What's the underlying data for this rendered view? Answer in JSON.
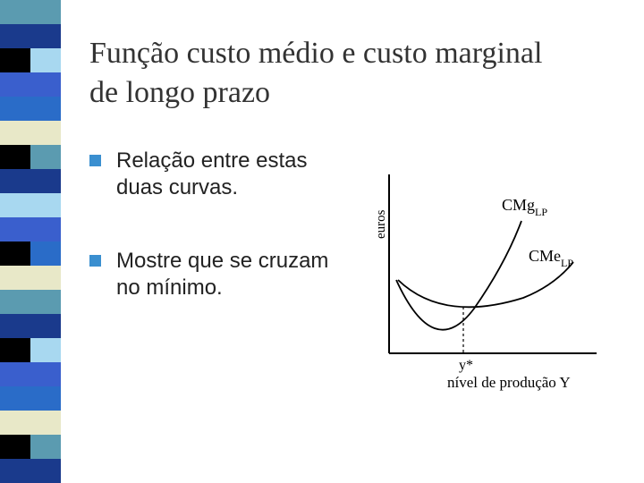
{
  "slide": {
    "title_line1": "Função custo médio e custo marginal",
    "title_line2": "de longo prazo",
    "bullets": [
      {
        "text": "Relação entre estas duas curvas."
      },
      {
        "text": "Mostre que se cruzam no mínimo."
      }
    ]
  },
  "diagram": {
    "y_axis_label": "euros",
    "x_axis_label": "nível de produção Y",
    "equilibrium_label": "y*",
    "curve_marginal": {
      "name": "CMg",
      "subscript": "LP"
    },
    "curve_average": {
      "name": "CMe",
      "subscript": "LP"
    }
  },
  "theme": {
    "stripe_colors": [
      "#5b9bb0",
      "#1a3a8c",
      "#a8d8f0",
      "#3a5fcd",
      "#2a6cc8",
      "#e8e8c8",
      "#5b9bb0",
      "#1a3a8c",
      "#a8d8f0",
      "#3a5fcd",
      "#2a6cc8",
      "#e8e8c8",
      "#5b9bb0",
      "#1a3a8c",
      "#a8d8f0",
      "#3a5fcd",
      "#2a6cc8",
      "#e8e8c8",
      "#5b9bb0",
      "#1a3a8c"
    ],
    "bullet_color": "#3a8fd0"
  }
}
